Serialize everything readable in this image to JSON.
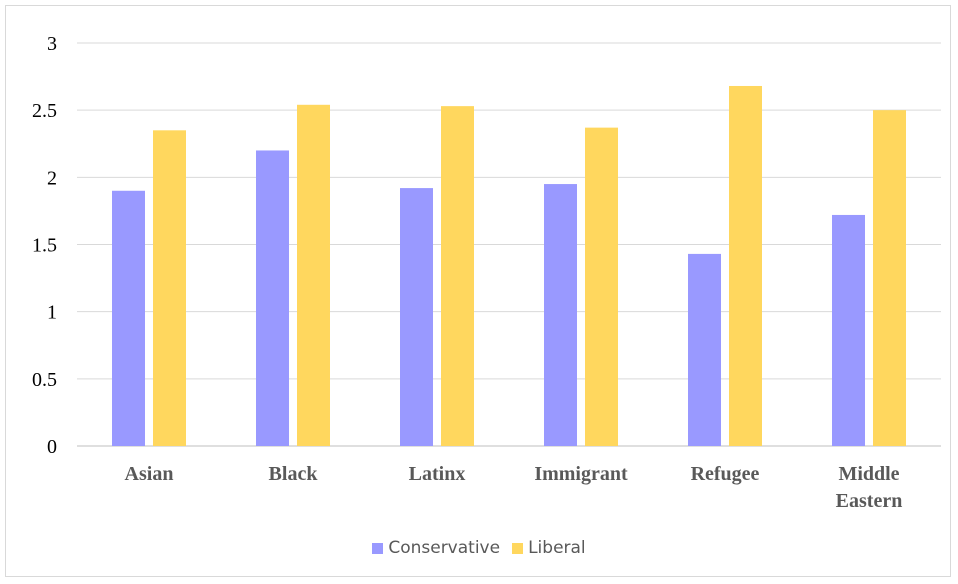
{
  "chart_data": {
    "type": "bar",
    "title": "",
    "xlabel": "",
    "ylabel": "",
    "categories": [
      [
        "Asian"
      ],
      [
        "Black"
      ],
      [
        "Latinx"
      ],
      [
        "Immigrant"
      ],
      [
        "Refugee"
      ],
      [
        "Middle",
        "Eastern"
      ]
    ],
    "series": [
      {
        "name": "Conservative",
        "color": "#9999ff",
        "values": [
          1.9,
          2.2,
          1.92,
          1.95,
          1.43,
          1.72
        ]
      },
      {
        "name": "Liberal",
        "color": "#ffd75e",
        "values": [
          2.35,
          2.54,
          2.53,
          2.37,
          2.68,
          2.5
        ]
      }
    ],
    "ylim": [
      0,
      3
    ],
    "yticks": [
      0,
      0.5,
      1,
      1.5,
      2,
      2.5,
      3
    ],
    "ytick_labels": [
      "0",
      "0.5",
      "1",
      "1.5",
      "2",
      "2.5",
      "3"
    ],
    "grid": true,
    "legend_position": "bottom"
  }
}
